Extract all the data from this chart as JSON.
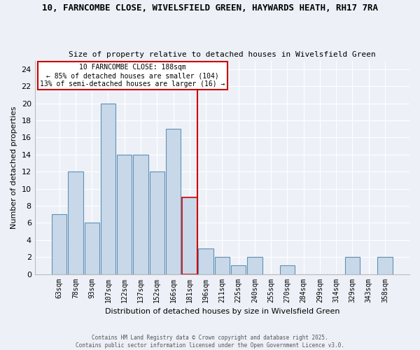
{
  "title_line1": "10, FARNCOMBE CLOSE, WIVELSFIELD GREEN, HAYWARDS HEATH, RH17 7RA",
  "title_line2": "Size of property relative to detached houses in Wivelsfield Green",
  "xlabel": "Distribution of detached houses by size in Wivelsfield Green",
  "ylabel": "Number of detached properties",
  "bar_labels": [
    "63sqm",
    "78sqm",
    "93sqm",
    "107sqm",
    "122sqm",
    "137sqm",
    "152sqm",
    "166sqm",
    "181sqm",
    "196sqm",
    "211sqm",
    "225sqm",
    "240sqm",
    "255sqm",
    "270sqm",
    "284sqm",
    "299sqm",
    "314sqm",
    "329sqm",
    "343sqm",
    "358sqm"
  ],
  "bar_values": [
    7,
    12,
    6,
    20,
    14,
    14,
    12,
    17,
    9,
    3,
    2,
    1,
    2,
    0,
    1,
    0,
    0,
    0,
    2,
    0,
    2
  ],
  "bar_color": "#c8d8e8",
  "bar_edge_color": "#6090b8",
  "highlight_bar_index": 8,
  "highlight_bar_edge_color": "#cc0000",
  "vline_color": "#cc0000",
  "annotation_title": "10 FARNCOMBE CLOSE: 188sqm",
  "annotation_line1": "← 85% of detached houses are smaller (104)",
  "annotation_line2": "13% of semi-detached houses are larger (16) →",
  "annotation_box_color": "#cc0000",
  "ylim": [
    0,
    25
  ],
  "yticks": [
    0,
    2,
    4,
    6,
    8,
    10,
    12,
    14,
    16,
    18,
    20,
    22,
    24
  ],
  "bg_color": "#edf1f7",
  "grid_color": "#ffffff",
  "footer_text": "Contains HM Land Registry data © Crown copyright and database right 2025.\nContains public sector information licensed under the Open Government Licence v3.0."
}
